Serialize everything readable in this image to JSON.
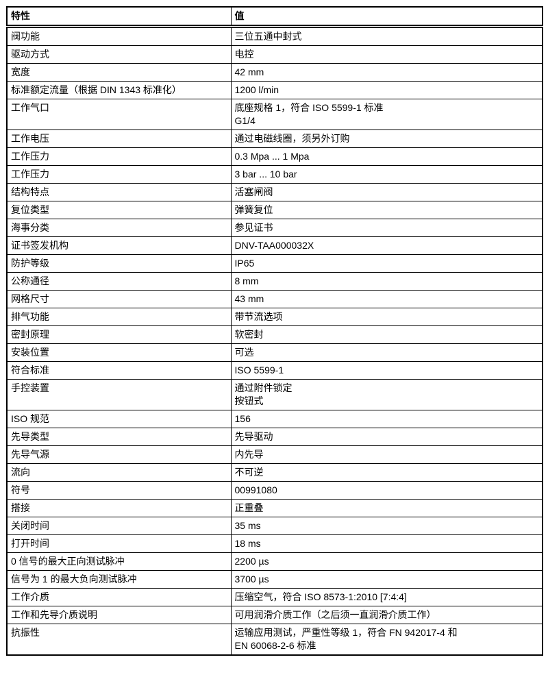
{
  "colors": {
    "background": "#ffffff",
    "border": "#000000",
    "text": "#000000"
  },
  "table": {
    "header": {
      "property": "特性",
      "value": "值"
    },
    "rows": [
      {
        "property": "阀功能",
        "value": "三位五通中封式"
      },
      {
        "property": "驱动方式",
        "value": "电控"
      },
      {
        "property": "宽度",
        "value": "42 mm"
      },
      {
        "property": "标准额定流量（根据 DIN 1343 标准化）",
        "value": "1200 l/min"
      },
      {
        "property": "工作气口",
        "value": "底座规格 1，符合 ISO 5599-1 标准\nG1/4"
      },
      {
        "property": "工作电压",
        "value": "通过电磁线圈，须另外订购"
      },
      {
        "property": "工作压力",
        "value": "0.3 Mpa ... 1 Mpa"
      },
      {
        "property": "工作压力",
        "value": "3 bar ... 10 bar"
      },
      {
        "property": "结构特点",
        "value": "活塞闸阀"
      },
      {
        "property": "复位类型",
        "value": "弹簧复位"
      },
      {
        "property": "海事分类",
        "value": "参见证书"
      },
      {
        "property": "证书签发机构",
        "value": "DNV-TAA000032X"
      },
      {
        "property": "防护等级",
        "value": "IP65"
      },
      {
        "property": "公称通径",
        "value": "8 mm"
      },
      {
        "property": "网格尺寸",
        "value": "43 mm"
      },
      {
        "property": "排气功能",
        "value": "带节流选项"
      },
      {
        "property": "密封原理",
        "value": "软密封"
      },
      {
        "property": "安装位置",
        "value": "可选"
      },
      {
        "property": "符合标准",
        "value": "ISO 5599-1"
      },
      {
        "property": "手控装置",
        "value": "通过附件锁定\n按钮式"
      },
      {
        "property": "ISO 规范",
        "value": "156"
      },
      {
        "property": "先导类型",
        "value": "先导驱动"
      },
      {
        "property": "先导气源",
        "value": "内先导"
      },
      {
        "property": "流向",
        "value": "不可逆"
      },
      {
        "property": "符号",
        "value": "00991080"
      },
      {
        "property": "搭接",
        "value": "正重叠"
      },
      {
        "property": "关闭时间",
        "value": "35 ms"
      },
      {
        "property": "打开时间",
        "value": "18 ms"
      },
      {
        "property": "0 信号的最大正向测试脉冲",
        "value": "2200 µs"
      },
      {
        "property": "信号为 1 的最大负向测试脉冲",
        "value": "3700 µs"
      },
      {
        "property": "工作介质",
        "value": "压缩空气，符合 ISO 8573-1:2010 [7:4:4]"
      },
      {
        "property": "工作和先导介质说明",
        "value": "可用润滑介质工作（之后须一直润滑介质工作）"
      },
      {
        "property": "抗振性",
        "value": "运输应用测试，严重性等级 1，符合 FN 942017-4 和\nEN 60068-2-6 标准"
      }
    ]
  }
}
